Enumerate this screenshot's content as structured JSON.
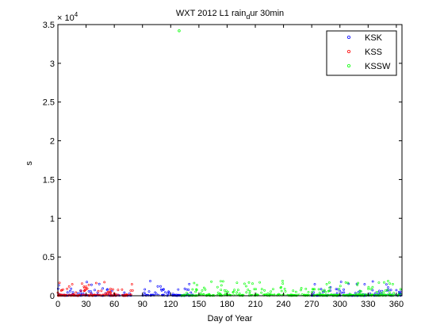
{
  "chart_data": {
    "type": "scatter",
    "title_parts": {
      "main": "WXT 2012 L1 rain",
      "sub": "d",
      "rest": "ur 30min"
    },
    "xlabel": "Day of Year",
    "ylabel": "s",
    "exponent_label": "× 10",
    "exponent_power": "4",
    "xlim": [
      0,
      366
    ],
    "ylim": [
      0,
      35000
    ],
    "xticks": [
      0,
      30,
      60,
      90,
      120,
      150,
      180,
      210,
      240,
      270,
      300,
      330,
      360
    ],
    "yticks": [
      0,
      5000,
      10000,
      15000,
      20000,
      25000,
      30000,
      35000
    ],
    "ytick_labels": [
      "0",
      "0.5",
      "1",
      "1.5",
      "2",
      "2.5",
      "3",
      "3.5"
    ],
    "legend_position": "top-right",
    "grid": false,
    "series": [
      {
        "name": "KSK",
        "color": "#0000ff",
        "segments": [
          [
            0,
            78
          ],
          [
            90,
            145
          ],
          [
            270,
            366
          ]
        ]
      },
      {
        "name": "KSS",
        "color": "#ff0000",
        "segments": [
          [
            0,
            80
          ]
        ]
      },
      {
        "name": "KSSW",
        "color": "#00ff00",
        "segments": [
          [
            130,
            366
          ]
        ]
      }
    ],
    "outliers": [
      {
        "series": "KSSW",
        "x": 129,
        "y": 34200
      }
    ],
    "typical_max_y": 1900
  }
}
